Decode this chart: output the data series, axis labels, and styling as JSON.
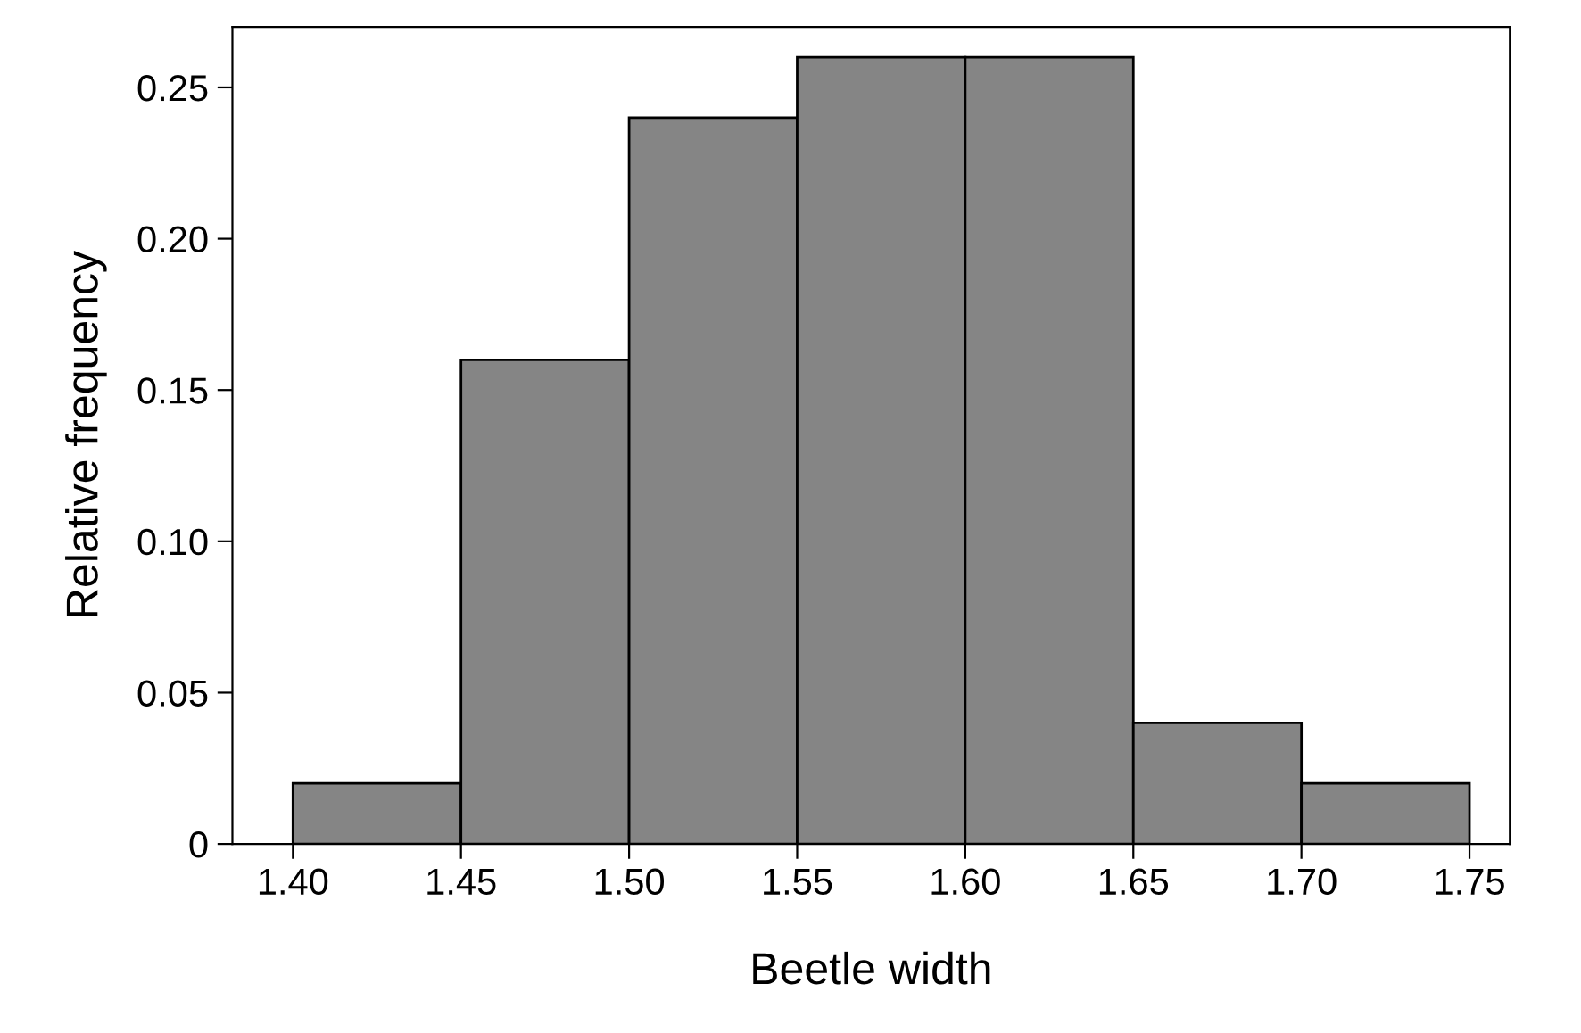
{
  "chart_data": {
    "type": "histogram",
    "xlabel": "Beetle width",
    "ylabel": "Relative frequency",
    "bins": [
      1.4,
      1.45,
      1.5,
      1.55,
      1.6,
      1.65,
      1.7,
      1.75
    ],
    "values": [
      0.02,
      0.16,
      0.24,
      0.26,
      0.26,
      0.04,
      0.02
    ],
    "color": "#858585",
    "xlim": [
      1.382,
      1.762
    ],
    "ylim": [
      0,
      0.27
    ],
    "xticks": [
      {
        "value": 1.4,
        "label": "1.40"
      },
      {
        "value": 1.45,
        "label": "1.45"
      },
      {
        "value": 1.5,
        "label": "1.50"
      },
      {
        "value": 1.55,
        "label": "1.55"
      },
      {
        "value": 1.6,
        "label": "1.60"
      },
      {
        "value": 1.65,
        "label": "1.65"
      },
      {
        "value": 1.7,
        "label": "1.70"
      },
      {
        "value": 1.75,
        "label": "1.75"
      }
    ],
    "yticks": [
      0,
      {
        "value": 0.05,
        "label": "0.05"
      },
      {
        "value": 0.1,
        "label": "0.10"
      },
      {
        "value": 0.15,
        "label": "0.15"
      },
      {
        "value": 0.2,
        "label": "0.20"
      },
      {
        "value": 0.25,
        "label": "0.25"
      }
    ],
    "grid": false
  }
}
